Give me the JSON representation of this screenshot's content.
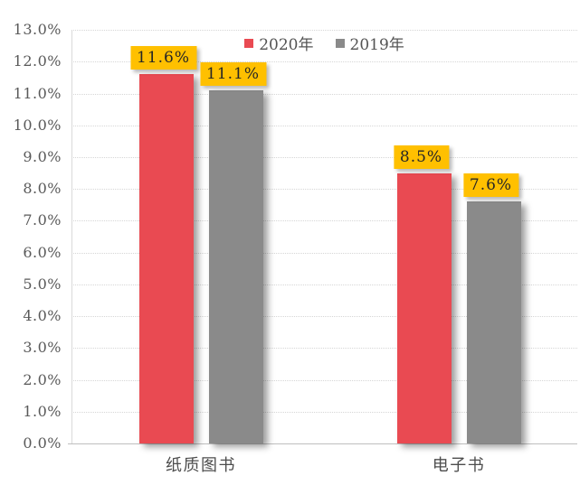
{
  "chart_data": {
    "type": "bar",
    "categories": [
      "纸质图书",
      "电子书"
    ],
    "series": [
      {
        "name": "2020年",
        "color": "#E94A52",
        "values": [
          11.6,
          8.5
        ],
        "labels": [
          "11.6%",
          "8.5%"
        ]
      },
      {
        "name": "2019年",
        "color": "#8A8A8A",
        "values": [
          11.1,
          7.6
        ],
        "labels": [
          "11.1%",
          "7.6%"
        ]
      }
    ],
    "ylim": [
      0,
      13
    ],
    "ytick_step": 1,
    "ytick_labels": [
      "0.0%",
      "1.0%",
      "2.0%",
      "3.0%",
      "4.0%",
      "5.0%",
      "6.0%",
      "7.0%",
      "8.0%",
      "9.0%",
      "10.0%",
      "11.0%",
      "12.0%",
      "13.0%"
    ],
    "grid": "horizontal-dotted",
    "gridline_color": "#D6D6D6",
    "axis_line_color": "#BFBFBF",
    "axis_text_color": "#595959",
    "legend_position": "top-center",
    "data_label_bg": "#FFC000",
    "data_label_text_color": "#262626",
    "background": "#FFFFFF"
  }
}
